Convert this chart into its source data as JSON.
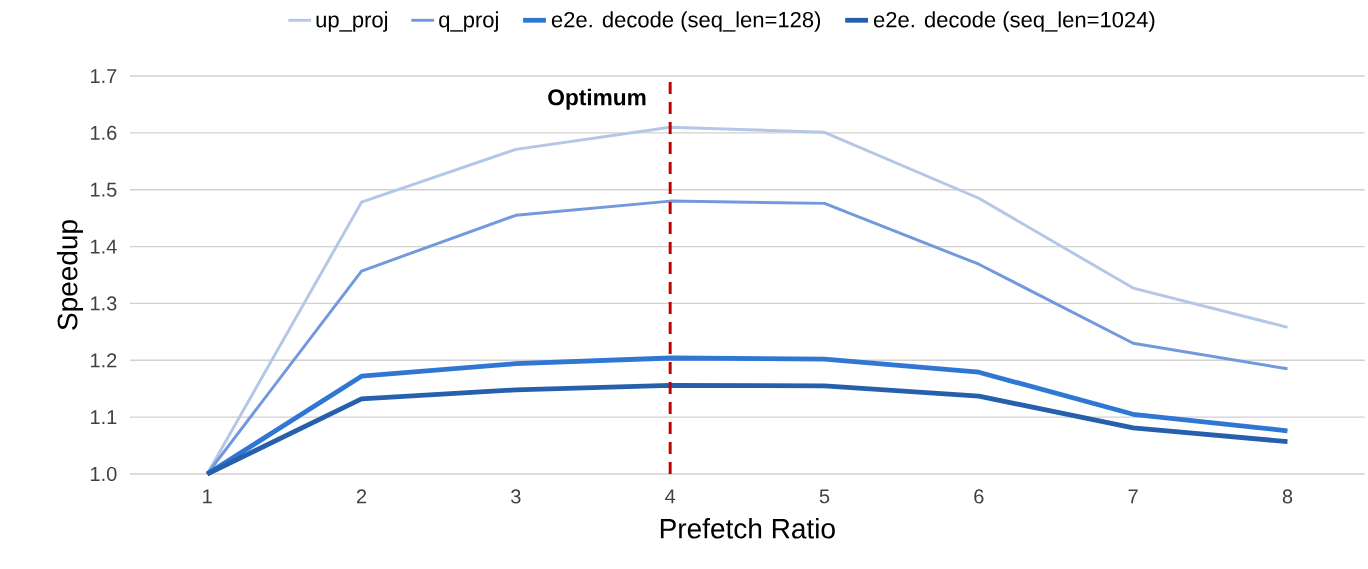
{
  "chart_data": {
    "type": "line",
    "xlabel": "Prefetch Ratio",
    "ylabel": "Speedup",
    "x": [
      1,
      2,
      3,
      4,
      5,
      6,
      7,
      8
    ],
    "xlim": [
      0.5,
      8.5
    ],
    "xticks": [
      1,
      2,
      3,
      4,
      5,
      6,
      7,
      8
    ],
    "ylim": [
      1.0,
      1.7
    ],
    "yticks": [
      {
        "value": 1.0,
        "label": "1.0"
      },
      1.1,
      1.2,
      1.3,
      1.4,
      1.5,
      1.6,
      1.7
    ],
    "grid": "y",
    "legend": "top",
    "line_style": "solid",
    "ref_lines": [
      {
        "axis": "x",
        "value": 4,
        "label": "Optimum",
        "color": "#c00000",
        "line_style": "dashed"
      }
    ],
    "series": [
      {
        "name": "up_proj",
        "color": "#b4c7e7",
        "values": [
          1.0,
          1.478,
          1.571,
          1.61,
          1.601,
          1.485,
          1.327,
          1.258
        ]
      },
      {
        "name": "q_proj",
        "color": "#7199dc",
        "values": [
          1.0,
          1.357,
          1.455,
          1.48,
          1.476,
          1.369,
          1.23,
          1.185
        ]
      },
      {
        "name": "e2e. decode (seq_len=128)",
        "color": "#3077d3",
        "values": [
          1.0,
          1.172,
          1.194,
          1.204,
          1.202,
          1.179,
          1.105,
          1.076
        ]
      },
      {
        "name": "e2e. decode (seq_len=1024)",
        "color": "#2660ad",
        "values": [
          1.0,
          1.132,
          1.148,
          1.156,
          1.155,
          1.137,
          1.081,
          1.057
        ]
      }
    ]
  }
}
